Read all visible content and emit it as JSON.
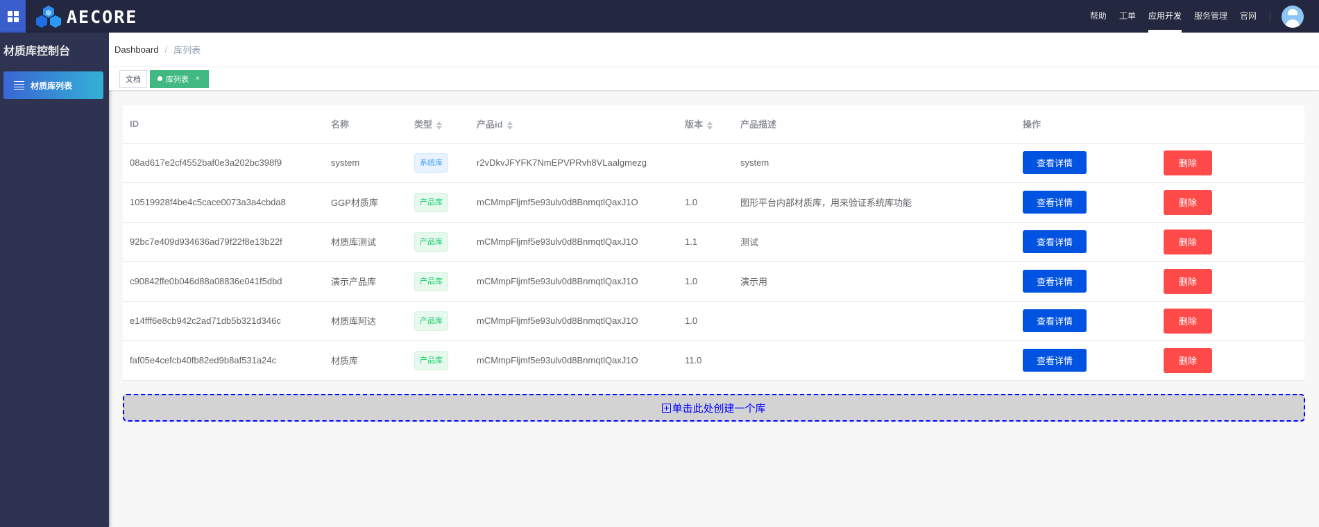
{
  "header": {
    "logo_text": "AECORE",
    "nav": [
      {
        "label": "帮助",
        "active": false
      },
      {
        "label": "工单",
        "active": false
      },
      {
        "label": "应用开发",
        "active": true
      },
      {
        "label": "服务管理",
        "active": false
      },
      {
        "label": "官网",
        "active": false
      }
    ]
  },
  "sidebar": {
    "title": "材质库控制台",
    "items": [
      {
        "label": "材质库列表",
        "icon": "list-icon",
        "active": true
      }
    ]
  },
  "breadcrumb": {
    "root": "Dashboard",
    "separator": "/",
    "current": "库列表"
  },
  "tabs": [
    {
      "label": "文档",
      "active": false
    },
    {
      "label": "库列表",
      "active": true,
      "close": "×"
    }
  ],
  "table": {
    "columns": [
      "ID",
      "名称",
      "类型",
      "产品id",
      "版本",
      "产品描述",
      "操作"
    ],
    "sortable": [
      "类型",
      "产品id",
      "版本"
    ],
    "view_label": "查看详情",
    "delete_label": "删除",
    "rows": [
      {
        "id": "08ad617e2cf4552baf0e3a202bc398f9",
        "name": "system",
        "type": "系统库",
        "type_kind": "sys",
        "product_id": "r2vDkvJFYFK7NmEPVPRvh8VLaalgmezg",
        "version": "",
        "desc": "system"
      },
      {
        "id": "10519928f4be4c5cace0073a3a4cbda8",
        "name": "GGP材质库",
        "type": "产品库",
        "type_kind": "prod",
        "product_id": "mCMmpFljmf5e93ulv0d8BnmqtlQaxJ1O",
        "version": "1.0",
        "desc": "图形平台内部材质库，用来验证系统库功能"
      },
      {
        "id": "92bc7e409d934636ad79f22f8e13b22f",
        "name": "材质库测试",
        "type": "产品库",
        "type_kind": "prod",
        "product_id": "mCMmpFljmf5e93ulv0d8BnmqtlQaxJ1O",
        "version": "1.1",
        "desc": "测试"
      },
      {
        "id": "c90842ffe0b046d88a08836e041f5dbd",
        "name": "演示产品库",
        "type": "产品库",
        "type_kind": "prod",
        "product_id": "mCMmpFljmf5e93ulv0d8BnmqtlQaxJ1O",
        "version": "1.0",
        "desc": "演示用"
      },
      {
        "id": "e14fff6e8cb942c2ad71db5b321d346c",
        "name": "材质库阿达",
        "type": "产品库",
        "type_kind": "prod",
        "product_id": "mCMmpFljmf5e93ulv0d8BnmqtlQaxJ1O",
        "version": "1.0",
        "desc": ""
      },
      {
        "id": "faf05e4cefcb40fb82ed9b8af531a24c",
        "name": "材质库",
        "type": "产品库",
        "type_kind": "prod",
        "product_id": "mCMmpFljmf5e93ulv0d8BnmqtlQaxJ1O",
        "version": "11.0",
        "desc": ""
      }
    ]
  },
  "create_label": "单击此处创建一个库",
  "colors": {
    "header_bg": "#232840",
    "sidebar_bg": "#2d3350",
    "primary": "#0052e0",
    "danger": "#ff4a4a",
    "tab_active": "#42b983"
  }
}
